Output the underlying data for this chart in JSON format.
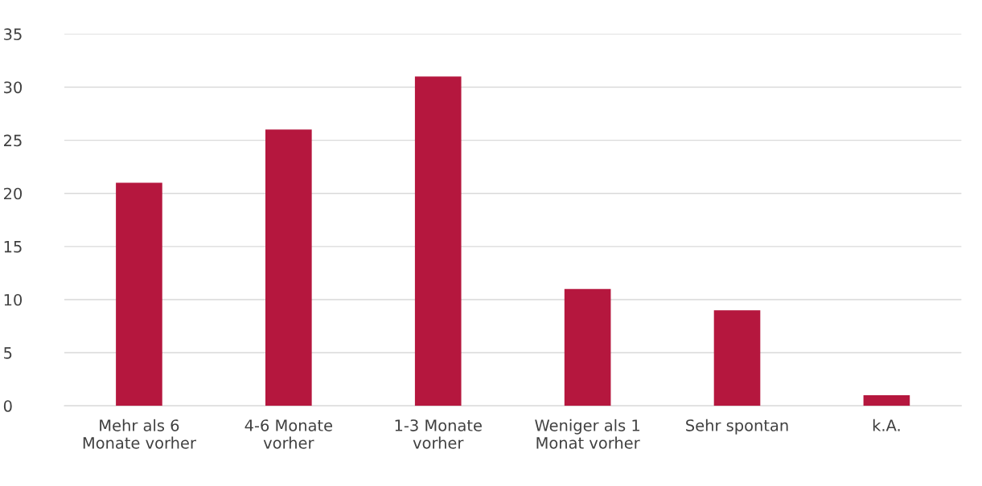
{
  "chart_data": {
    "type": "bar",
    "categories": [
      "Mehr als 6\nMonate vorher",
      "4-6 Monate\nvorher",
      "1-3 Monate\nvorher",
      "Weniger als 1\nMonat vorher",
      "Sehr spontan",
      "k.A."
    ],
    "values": [
      21,
      26,
      31,
      11,
      9,
      1
    ],
    "color": "#b5173e",
    "ylim": [
      0,
      35
    ],
    "yticks": [
      0,
      5,
      10,
      15,
      20,
      25,
      30,
      35
    ],
    "grid": "y",
    "legend": false
  }
}
